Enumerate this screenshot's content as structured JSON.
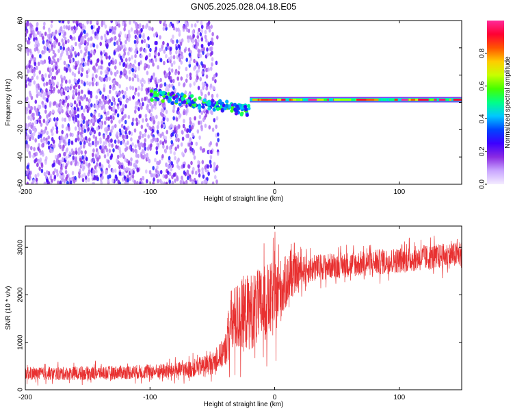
{
  "title": "GN05.2025.028.04.18.E05",
  "chart_data": [
    {
      "type": "heatmap",
      "xlabel": "Height of straight line (km)",
      "ylabel": "Frequency (Hz)",
      "xlim": [
        -200,
        150
      ],
      "ylim": [
        -60,
        60
      ],
      "xticks": [
        -200,
        -100,
        0,
        100
      ],
      "yticks": [
        -60,
        -40,
        -20,
        0,
        20,
        40,
        60
      ],
      "colorbar": {
        "label": "Normalized spectral amplitude",
        "range": [
          0,
          1
        ],
        "ticks": [
          "0.0",
          "0.2",
          "0.4",
          "0.6",
          "0.8"
        ],
        "tick_values": [
          0,
          0.2,
          0.4,
          0.6,
          0.8
        ],
        "colors": [
          "#f4ecff",
          "#c9a6ff",
          "#8a2be2",
          "#3c00ff",
          "#0044ff",
          "#00c8ff",
          "#00ff88",
          "#44ff00",
          "#c8ff00",
          "#ffcc00",
          "#ff5500",
          "#ff0033",
          "#ff2a99"
        ]
      },
      "regions": [
        {
          "name": "noise",
          "x_range": [
            -200,
            -45
          ],
          "freq_range": [
            -60,
            60
          ],
          "amplitude": [
            0.05,
            0.3
          ]
        },
        {
          "name": "transition",
          "x_range": [
            -100,
            -20
          ],
          "freq_center": [
            6,
            -6
          ],
          "amplitude": [
            0.2,
            0.6
          ]
        },
        {
          "name": "carrier",
          "x_range": [
            -20,
            150
          ],
          "freq": 2,
          "amplitude": [
            0.5,
            1.0
          ]
        }
      ]
    },
    {
      "type": "line",
      "xlabel": "Height of straight line (km)",
      "ylabel": "SNR (10 * v/v)",
      "xlim": [
        -200,
        150
      ],
      "ylim": [
        0,
        3450
      ],
      "xticks": [
        -200,
        -100,
        0,
        100
      ],
      "yticks": [
        0,
        1000,
        2000,
        3000
      ],
      "color": "#e83030",
      "envelope": {
        "x": [
          -200,
          -150,
          -100,
          -70,
          -50,
          -40,
          -35,
          -25,
          -15,
          -5,
          0,
          10,
          20,
          40,
          80,
          120,
          150
        ],
        "mean": [
          330,
          350,
          380,
          420,
          560,
          800,
          1400,
          1600,
          1700,
          1850,
          1900,
          2300,
          2500,
          2600,
          2680,
          2780,
          2850
        ],
        "spread": [
          150,
          160,
          170,
          200,
          250,
          350,
          800,
          900,
          900,
          900,
          900,
          600,
          350,
          300,
          300,
          300,
          300
        ]
      }
    }
  ]
}
